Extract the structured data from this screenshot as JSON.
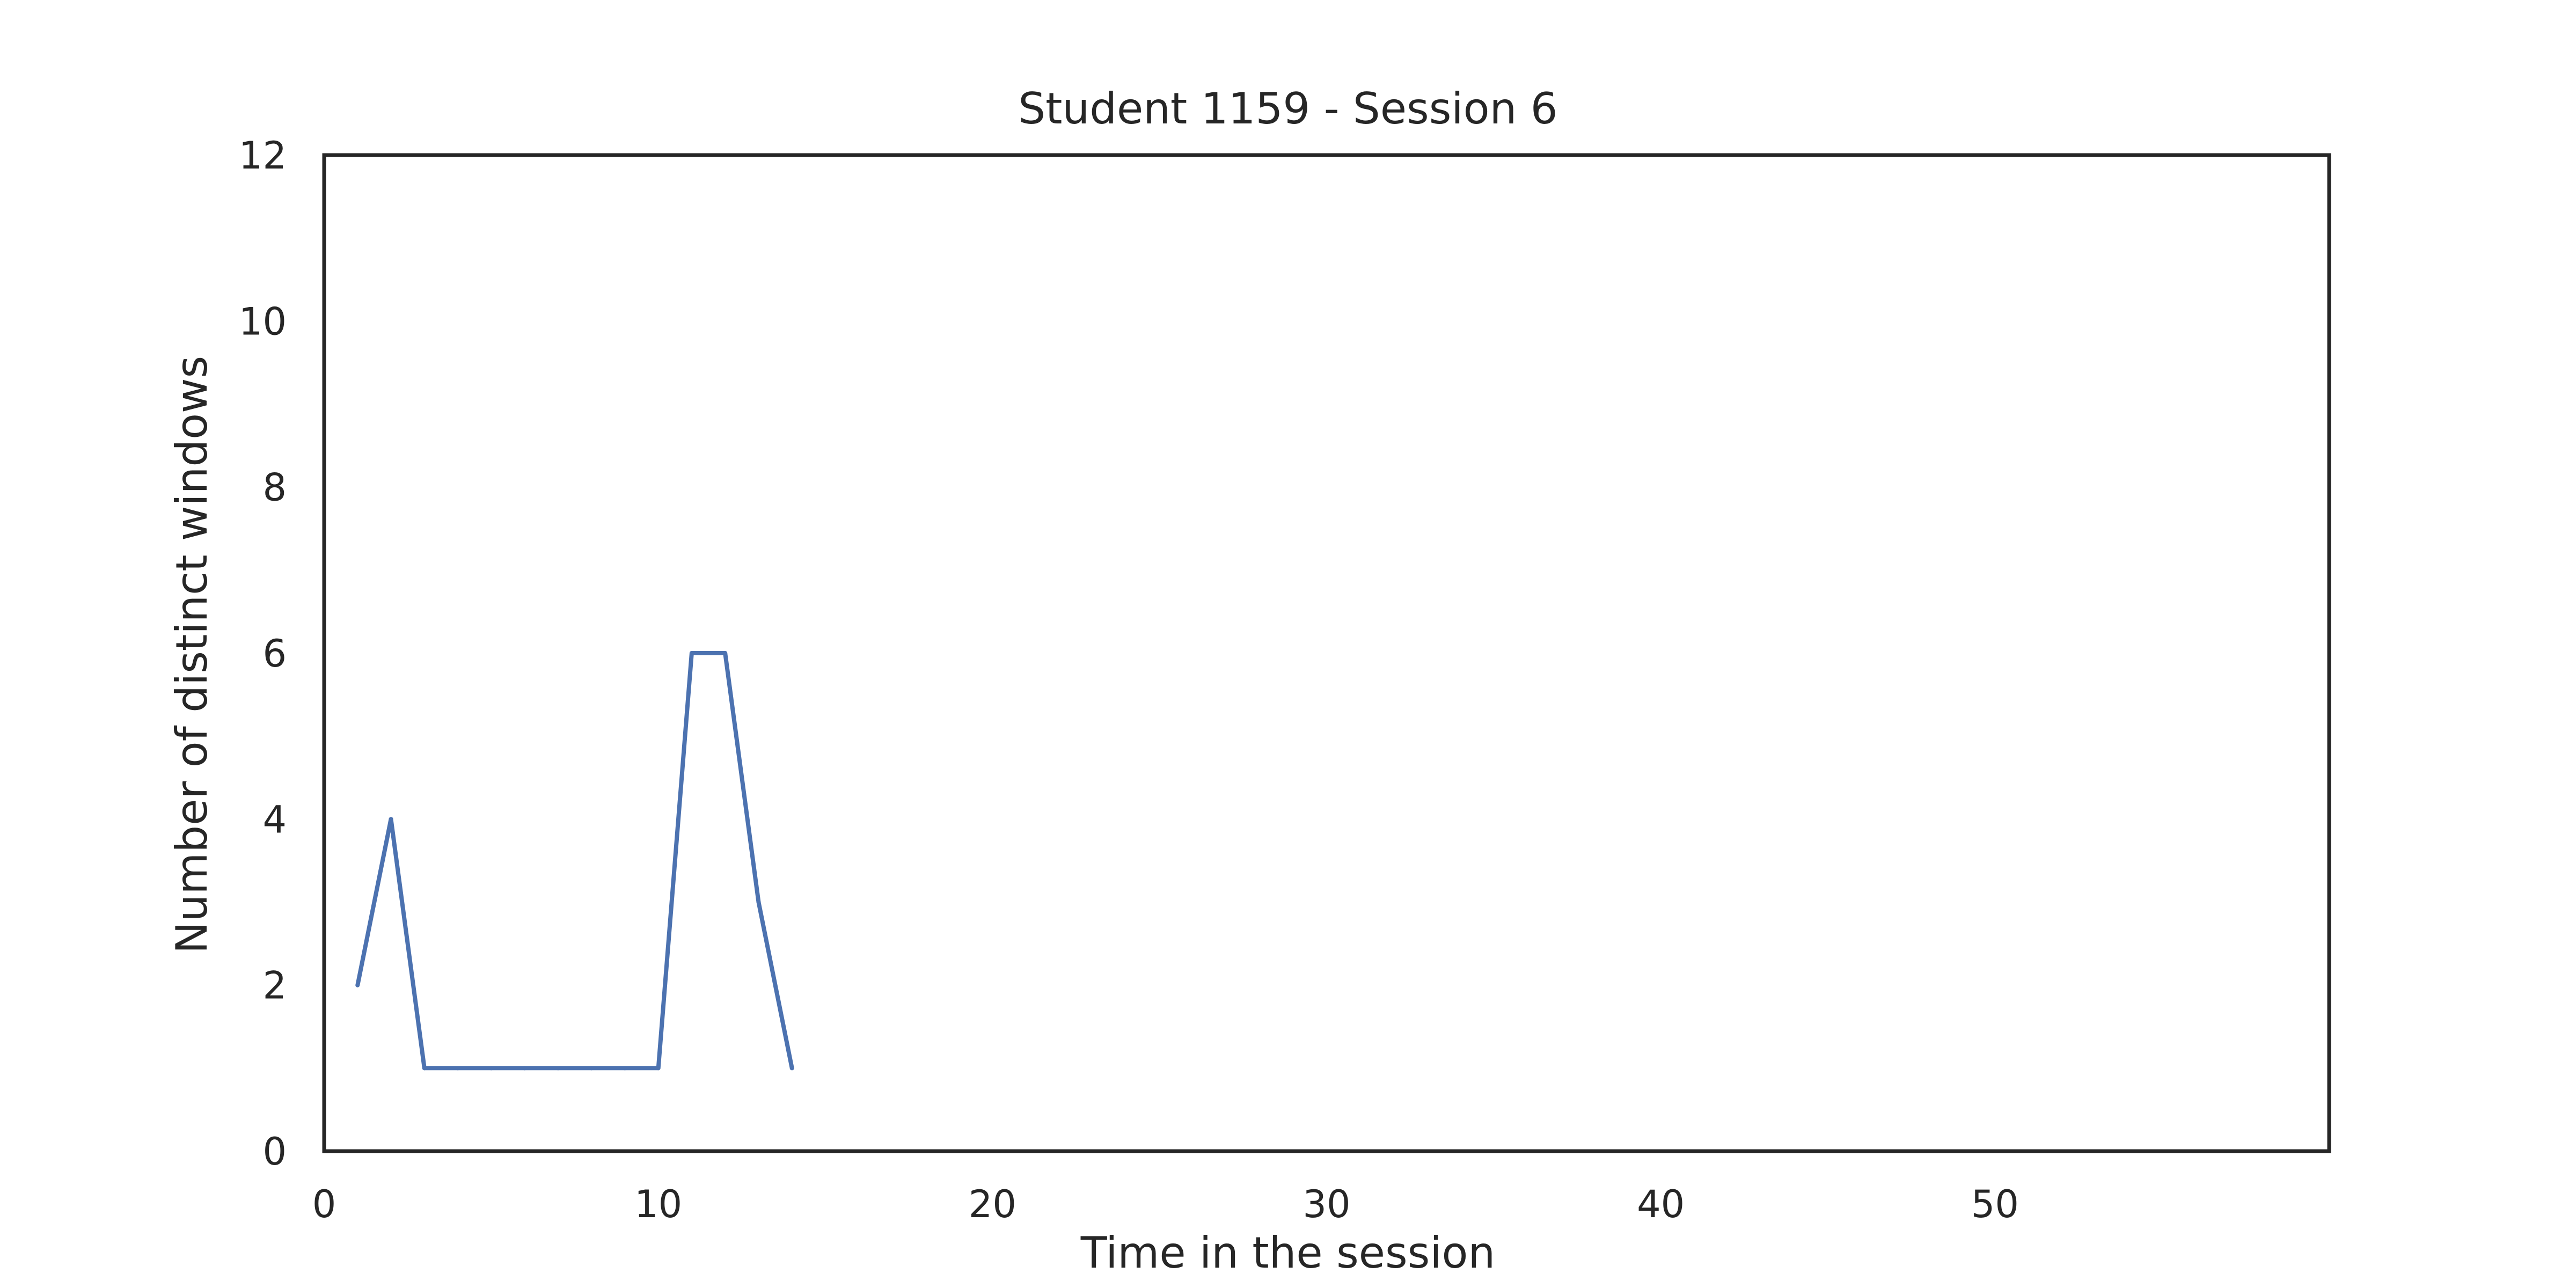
{
  "chart_data": {
    "type": "line",
    "title": "Student 1159 - Session 6",
    "xlabel": "Time in the session",
    "ylabel": "Number of distinct windows",
    "xlim": [
      0,
      60
    ],
    "ylim": [
      0,
      12
    ],
    "xticks": [
      0,
      10,
      20,
      30,
      40,
      50
    ],
    "yticks": [
      0,
      2,
      4,
      6,
      8,
      10,
      12
    ],
    "grid": false,
    "series": [
      {
        "color": "#4c72b0",
        "x": [
          1,
          2,
          3,
          4,
          5,
          6,
          7,
          8,
          9,
          10,
          11,
          12,
          13,
          14
        ],
        "y": [
          2,
          4,
          1,
          1,
          1,
          1,
          1,
          1,
          1,
          1,
          6,
          6,
          3,
          1
        ]
      }
    ]
  }
}
